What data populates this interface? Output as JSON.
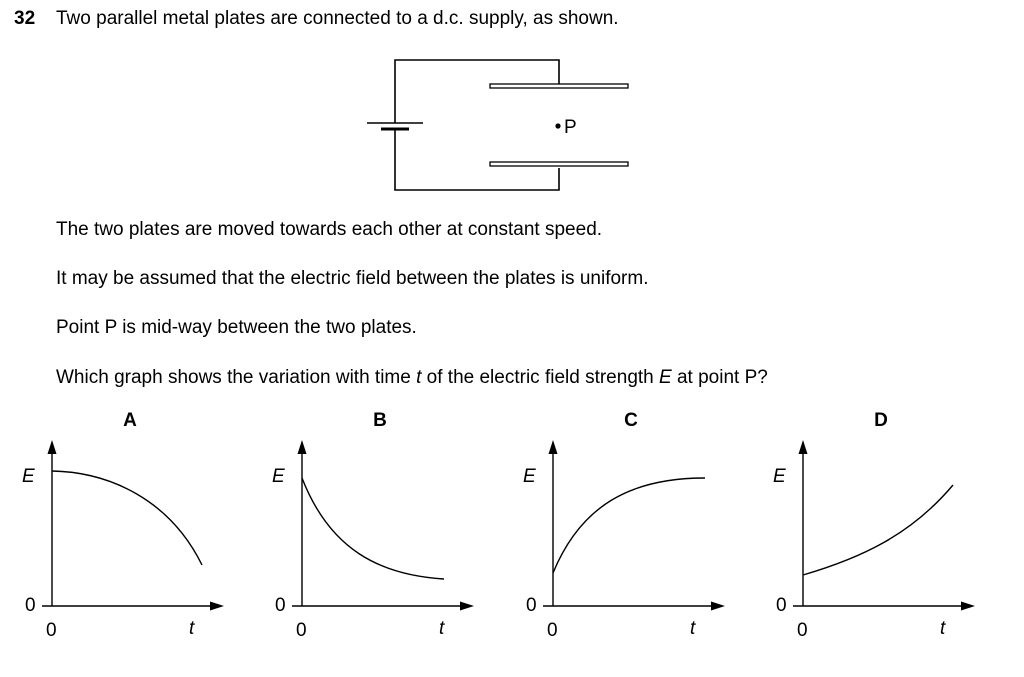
{
  "question": {
    "number": "32",
    "intro": "Two parallel metal plates are connected to a d.c. supply, as shown.",
    "point_label": "P",
    "line1": "The two plates are moved towards each other at constant speed.",
    "line2": "It may be assumed that the electric field between the plates is uniform.",
    "line3": "Point P is mid-way between the two plates.",
    "line4_a": "Which graph shows the variation with time ",
    "line4_t": "t",
    "line4_b": " of the electric field strength ",
    "line4_E": "E",
    "line4_c": " at point P?"
  },
  "graphs": [
    {
      "letter": "A",
      "ylabel": "E",
      "xlabel": "t",
      "y_origin": "0",
      "x_origin": "0"
    },
    {
      "letter": "B",
      "ylabel": "E",
      "xlabel": "t",
      "y_origin": "0",
      "x_origin": "0"
    },
    {
      "letter": "C",
      "ylabel": "E",
      "xlabel": "t",
      "y_origin": "0",
      "x_origin": "0"
    },
    {
      "letter": "D",
      "ylabel": "E",
      "xlabel": "t",
      "y_origin": "0",
      "x_origin": "0"
    }
  ]
}
